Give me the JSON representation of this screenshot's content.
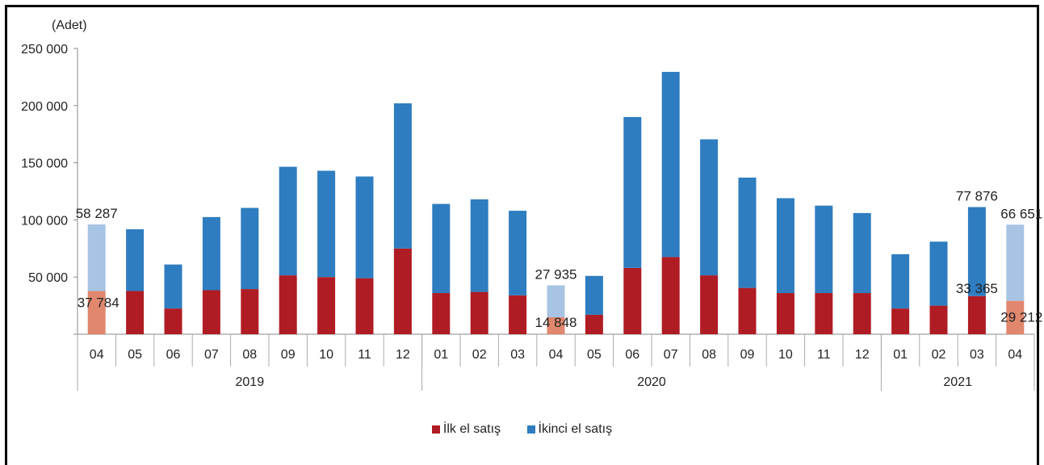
{
  "chart_data": {
    "type": "bar",
    "stacked": true,
    "unit_label": "(Adet)",
    "yticks": [
      "0",
      "50 000",
      "100 000",
      "150 000",
      "200 000",
      "250 000"
    ],
    "ylim": [
      0,
      250000
    ],
    "categories": [
      "04",
      "05",
      "06",
      "07",
      "08",
      "09",
      "10",
      "11",
      "12",
      "01",
      "02",
      "03",
      "04",
      "05",
      "06",
      "07",
      "08",
      "09",
      "10",
      "11",
      "12",
      "01",
      "02",
      "03",
      "04"
    ],
    "year_groups": [
      {
        "label": "2019",
        "count": 9
      },
      {
        "label": "2020",
        "count": 12
      },
      {
        "label": "2021",
        "count": 4
      }
    ],
    "series": [
      {
        "name": "İlk el satış",
        "color": "#b01c24",
        "highlight_color": "#e0876e",
        "values": [
          37784,
          37800,
          22500,
          38500,
          39500,
          51500,
          50000,
          49000,
          75000,
          36000,
          37000,
          34000,
          14848,
          17000,
          58000,
          67500,
          51500,
          40500,
          36000,
          36000,
          36000,
          22500,
          25000,
          33365,
          29212
        ]
      },
      {
        "name": "İkinci el satış",
        "color": "#2e7dc0",
        "highlight_color": "#a8c4e4",
        "values": [
          58287,
          54000,
          38500,
          64000,
          71000,
          95000,
          93000,
          89000,
          127000,
          78000,
          81000,
          74000,
          27935,
          34000,
          132000,
          162000,
          119000,
          96500,
          83000,
          76500,
          70000,
          47500,
          56000,
          77876,
          66651
        ]
      }
    ],
    "highlight_indices": [
      0,
      12,
      24
    ],
    "annotations": [
      {
        "index": 0,
        "series": 1,
        "text": "58 287"
      },
      {
        "index": 0,
        "series": 0,
        "text": "37 784"
      },
      {
        "index": 12,
        "series": 1,
        "text": "27 935"
      },
      {
        "index": 12,
        "series": 0,
        "text": "14 848"
      },
      {
        "index": 23,
        "series": 1,
        "text": "77 876"
      },
      {
        "index": 23,
        "series": 0,
        "text": "33 365"
      },
      {
        "index": 24,
        "series": 1,
        "text": "66 651"
      },
      {
        "index": 24,
        "series": 0,
        "text": "29 212"
      }
    ],
    "legend_position": "bottom"
  }
}
